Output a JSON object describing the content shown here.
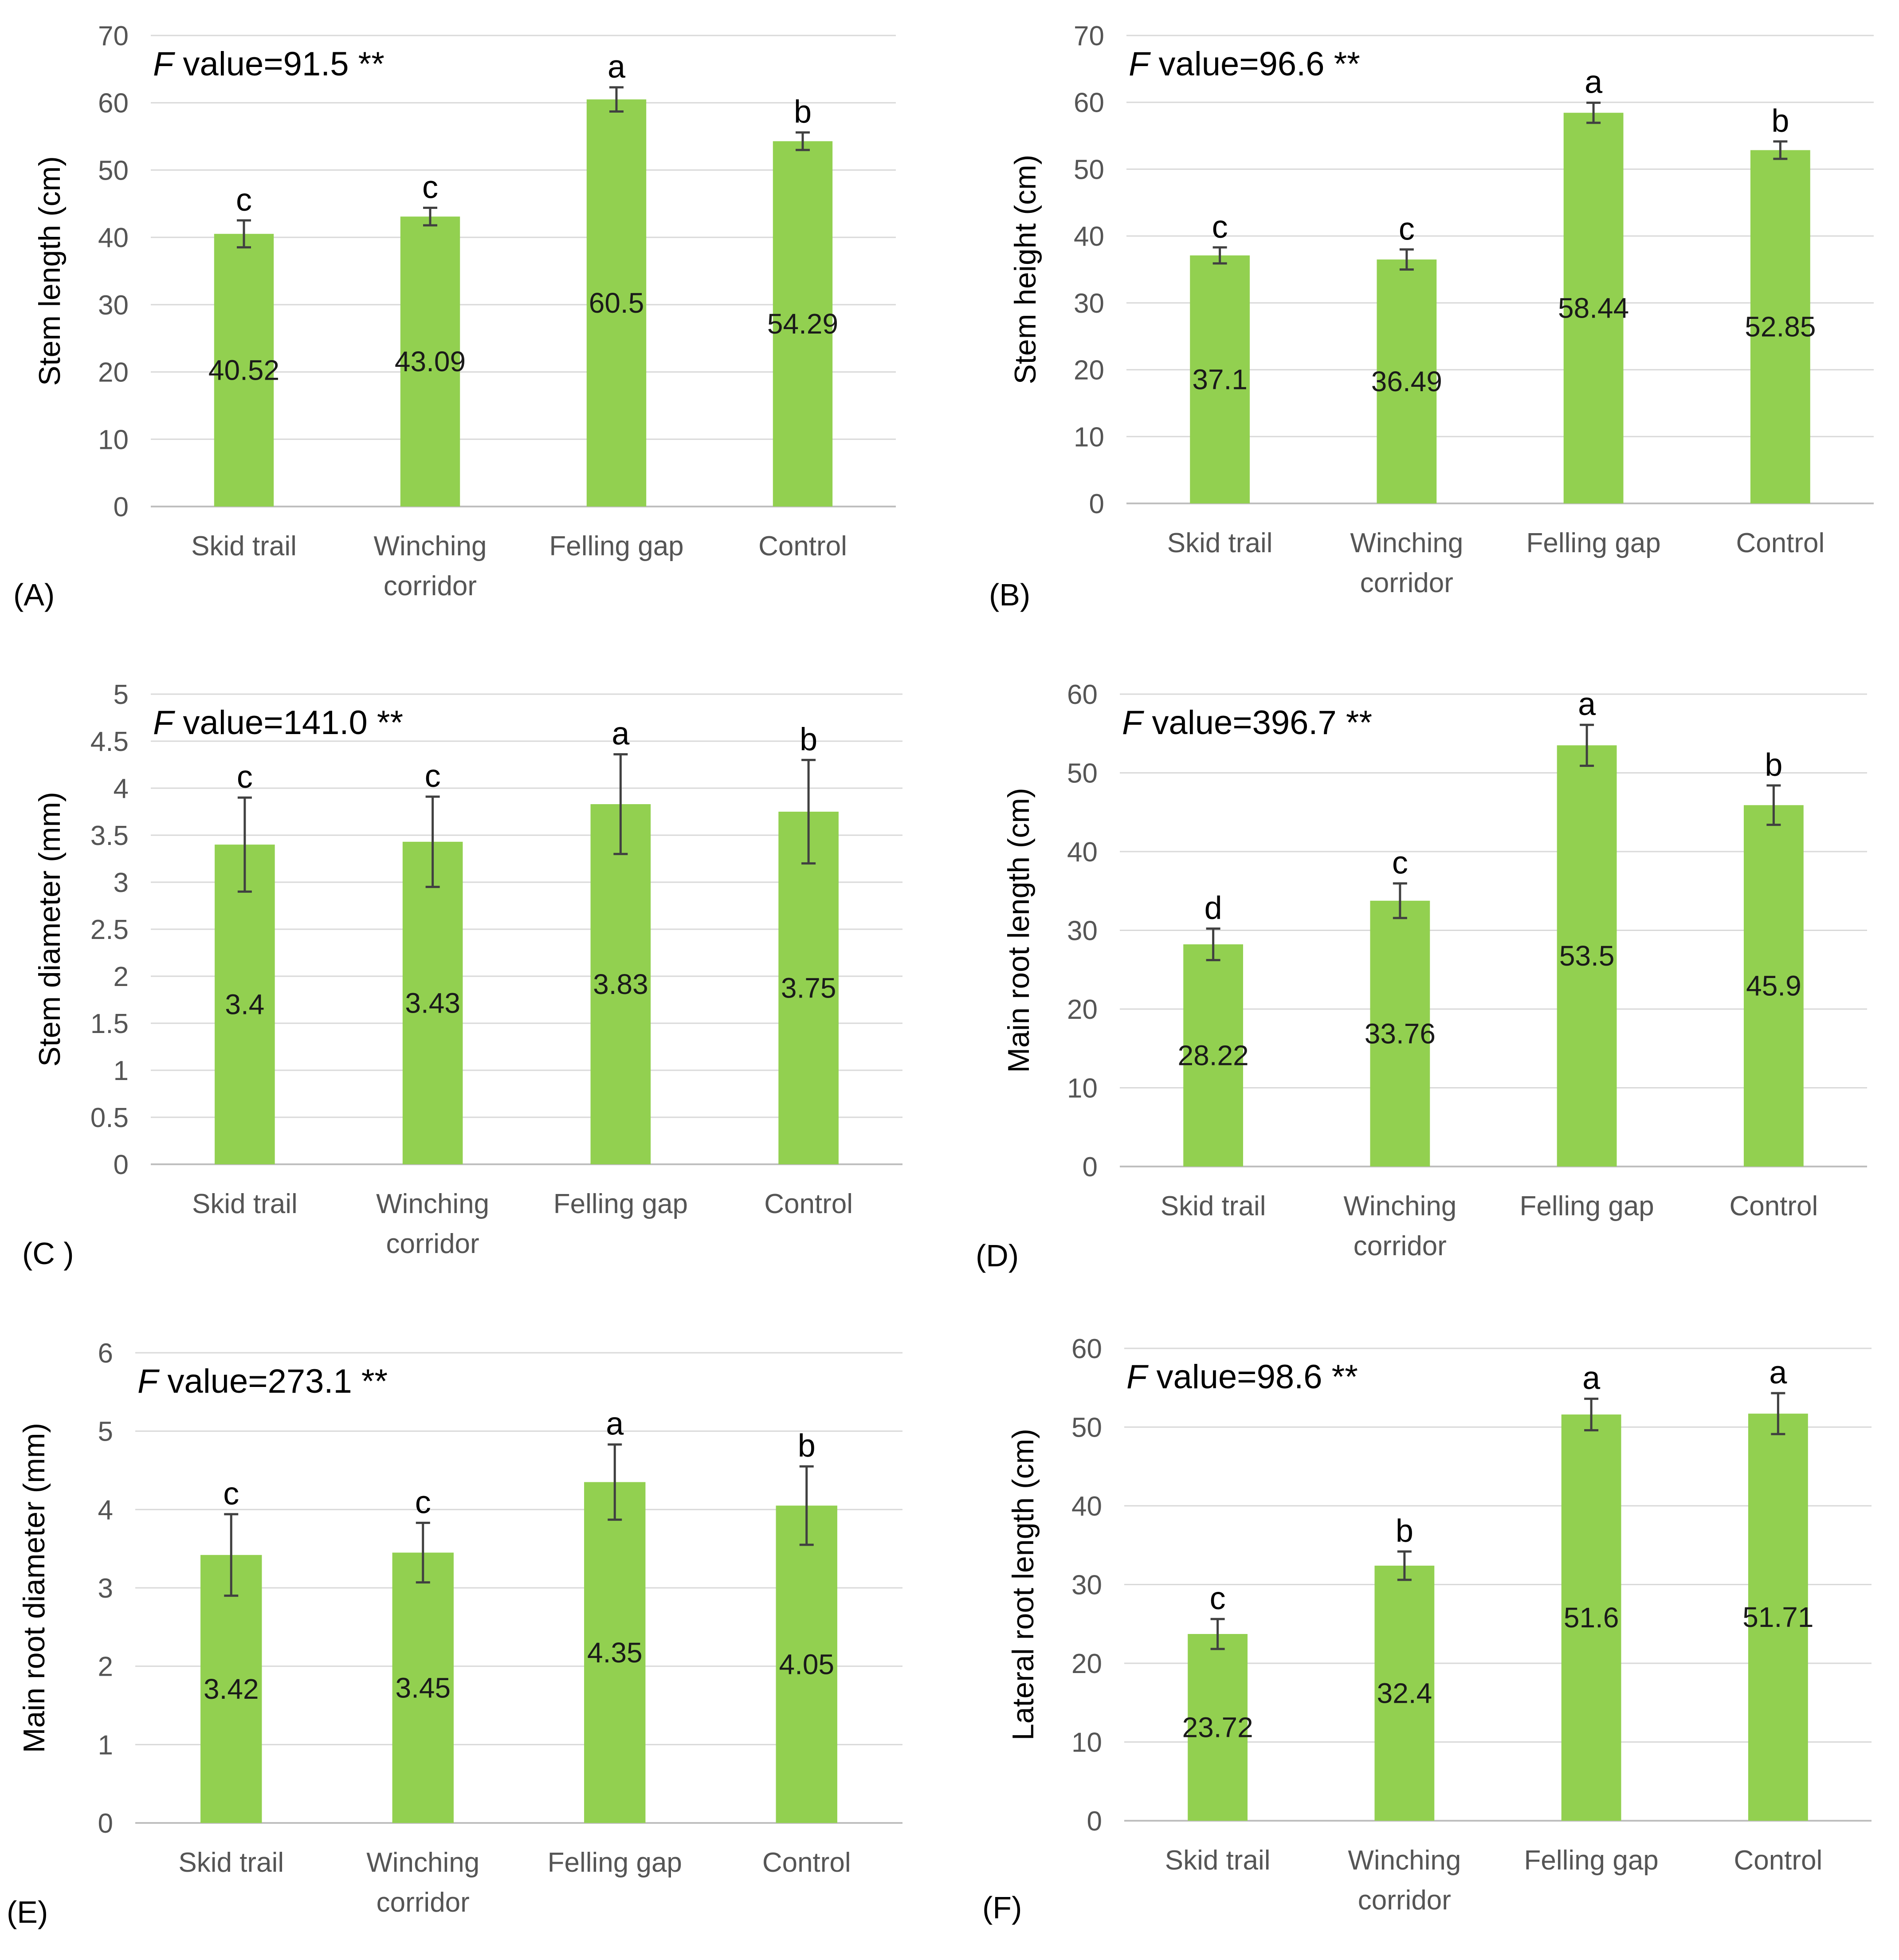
{
  "colors": {
    "bar": "#92d050",
    "error_bar": "#404040",
    "grid": "#d9d9d9",
    "axis": "#bfbfbf"
  },
  "chart_data": [
    {
      "panel": "(A)",
      "type": "bar",
      "categories": [
        "Skid trail",
        "Winching corridor",
        "Felling gap",
        "Control"
      ],
      "values": [
        40.52,
        43.09,
        60.5,
        54.29
      ],
      "value_labels": [
        "40.52",
        "43.09",
        "60.5",
        "54.29"
      ],
      "errors": [
        2.0,
        1.3,
        1.8,
        1.3
      ],
      "letters": [
        "c",
        "c",
        "a",
        "b"
      ],
      "f_label": "F",
      "f_value_text": " value=91.5 **",
      "ylabel": "Stem length (cm)",
      "ylim": [
        0,
        70
      ],
      "ystep": 10,
      "yticks": [
        "0",
        "10",
        "20",
        "30",
        "40",
        "50",
        "60",
        "70"
      ]
    },
    {
      "panel": "(B)",
      "type": "bar",
      "categories": [
        "Skid trail",
        "Winching corridor",
        "Felling gap",
        "Control"
      ],
      "values": [
        37.1,
        36.49,
        58.44,
        52.85
      ],
      "value_labels": [
        "37.1",
        "36.49",
        "58.44",
        "52.85"
      ],
      "errors": [
        1.2,
        1.5,
        1.5,
        1.3
      ],
      "letters": [
        "c",
        "c",
        "a",
        "b"
      ],
      "f_label": "F",
      "f_value_text": " value=96.6 **",
      "ylabel": "Stem height (cm)",
      "ylim": [
        0,
        70
      ],
      "ystep": 10,
      "yticks": [
        "0",
        "10",
        "20",
        "30",
        "40",
        "50",
        "60",
        "70"
      ]
    },
    {
      "panel": "(C )",
      "type": "bar",
      "categories": [
        "Skid trail",
        "Winching corridor",
        "Felling gap",
        "Control"
      ],
      "values": [
        3.4,
        3.43,
        3.83,
        3.75
      ],
      "value_labels": [
        "3.4",
        "3.43",
        "3.83",
        "3.75"
      ],
      "errors": [
        0.5,
        0.48,
        0.53,
        0.55
      ],
      "letters": [
        "c",
        "c",
        "a",
        "b"
      ],
      "f_label": "F",
      "f_value_text": " value=141.0 **",
      "ylabel": "Stem diameter (mm)",
      "ylim": [
        0,
        5
      ],
      "ystep": 0.5,
      "yticks": [
        "0",
        "0.5",
        "1",
        "1.5",
        "2",
        "2.5",
        "3",
        "3.5",
        "4",
        "4.5",
        "5"
      ]
    },
    {
      "panel": "(D)",
      "type": "bar",
      "categories": [
        "Skid trail",
        "Winching corridor",
        "Felling gap",
        "Control"
      ],
      "values": [
        28.22,
        33.76,
        53.5,
        45.9
      ],
      "value_labels": [
        "28.22",
        "33.76",
        "53.5",
        "45.9"
      ],
      "errors": [
        2.0,
        2.2,
        2.6,
        2.5
      ],
      "letters": [
        "d",
        "c",
        "a",
        "b"
      ],
      "f_label": "F",
      "f_value_text": " value=396.7 **",
      "ylabel": "Main root length (cm)",
      "ylim": [
        0,
        60
      ],
      "ystep": 10,
      "yticks": [
        "0",
        "10",
        "20",
        "30",
        "40",
        "50",
        "60"
      ]
    },
    {
      "panel": "(E)",
      "type": "bar",
      "categories": [
        "Skid trail",
        "Winching corridor",
        "Felling gap",
        "Control"
      ],
      "values": [
        3.42,
        3.45,
        4.35,
        4.05
      ],
      "value_labels": [
        "3.42",
        "3.45",
        "4.35",
        "4.05"
      ],
      "errors": [
        0.52,
        0.38,
        0.48,
        0.5
      ],
      "letters": [
        "c",
        "c",
        "a",
        "b"
      ],
      "f_label": "F",
      "f_value_text": " value=273.1 **",
      "ylabel": "Main root diameter (mm)",
      "ylim": [
        0,
        6
      ],
      "ystep": 1,
      "yticks": [
        "0",
        "1",
        "2",
        "3",
        "4",
        "5",
        "6"
      ]
    },
    {
      "panel": "(F)",
      "type": "bar",
      "categories": [
        "Skid trail",
        "Winching corridor",
        "Felling gap",
        "Control"
      ],
      "values": [
        23.72,
        32.4,
        51.6,
        51.71
      ],
      "value_labels": [
        "23.72",
        "32.4",
        "51.6",
        "51.71"
      ],
      "errors": [
        1.9,
        1.8,
        2.0,
        2.6
      ],
      "letters": [
        "c",
        "b",
        "a",
        "a"
      ],
      "f_label": "F",
      "f_value_text": " value=98.6 **",
      "ylabel": "Lateral root length (cm)",
      "ylim": [
        0,
        60
      ],
      "ystep": 10,
      "yticks": [
        "0",
        "10",
        "20",
        "30",
        "40",
        "50",
        "60"
      ]
    }
  ]
}
